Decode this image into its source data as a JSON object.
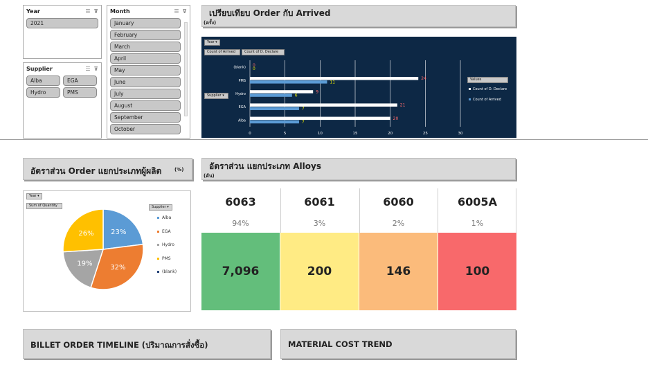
{
  "slicers": {
    "year": {
      "title": "Year",
      "items": [
        "2021"
      ]
    },
    "month": {
      "title": "Month",
      "items": [
        "January",
        "February",
        "March",
        "April",
        "May",
        "June",
        "July",
        "August",
        "September",
        "October"
      ]
    },
    "supplier": {
      "title": "Supplier",
      "items": [
        "Alba",
        "EGA",
        "Hydro",
        "PMS"
      ]
    },
    "icons": [
      "multi-select-icon",
      "clear-filter-icon"
    ]
  },
  "order_vs_arrived": {
    "title": "เปรียบเทียบ Order กับ Arrived",
    "unit": "(ครั้ง)",
    "buttons": {
      "year": "Year",
      "count_arrived": "Count of Arrived",
      "count_declare": "Count of D. Declare",
      "supplier": "Supplier"
    },
    "legend_title": "Values"
  },
  "order_share": {
    "title": "อัตราส่วน Order แยกประเภทผู้ผลิต",
    "unit": "(%)",
    "buttons": {
      "year": "Year",
      "sum_quantity": "Sum of Quantity",
      "supplier": "Supplier"
    }
  },
  "alloys": {
    "title": "อัตราส่วน แยกประเภท Alloys",
    "unit": "(ตัน)",
    "items": [
      {
        "name": "6063",
        "pct": "94%",
        "value": "7,096",
        "color": "#63be7b"
      },
      {
        "name": "6061",
        "pct": "3%",
        "value": "200",
        "color": "#ffeb84"
      },
      {
        "name": "6060",
        "pct": "2%",
        "value": "146",
        "color": "#fbbb7b"
      },
      {
        "name": "6005A",
        "pct": "1%",
        "value": "100",
        "color": "#f8696b"
      }
    ]
  },
  "timeline": {
    "title": "BILLET ORDER TIMELINE (ปริมาณการสั่งซื้อ)"
  },
  "cost_trend": {
    "title": "MATERIAL COST TREND"
  },
  "chart_data": [
    {
      "type": "bar",
      "orientation": "horizontal",
      "categories": [
        "(blank)",
        "PMS",
        "Hydro",
        "EGA",
        "Alba"
      ],
      "series": [
        {
          "name": "Count of D. Declare",
          "color": "#ffffff",
          "label_color": "#ff6b6b",
          "values": [
            0,
            24,
            9,
            21,
            20
          ]
        },
        {
          "name": "Count of Arrived",
          "color": "#5b9bd5",
          "label_color": "#e6e600",
          "values": [
            0,
            11,
            6,
            7,
            7
          ]
        }
      ],
      "xlim": [
        0,
        30
      ],
      "xticks": [
        "0",
        "5",
        "10",
        "15",
        "20",
        "25",
        "30"
      ],
      "grid": true,
      "legend": "right"
    },
    {
      "type": "pie",
      "slices": [
        {
          "name": "Alba",
          "value": 23,
          "label": "23%",
          "color": "#5b9bd5"
        },
        {
          "name": "EGA",
          "value": 32,
          "label": "32%",
          "color": "#ed7d31"
        },
        {
          "name": "Hydro",
          "value": 19,
          "label": "19%",
          "color": "#a5a5a5"
        },
        {
          "name": "PMS",
          "value": 26,
          "label": "26%",
          "color": "#ffc000"
        },
        {
          "name": "(blank)",
          "value": 0,
          "label": "",
          "color": "#264478"
        }
      ],
      "legend": "right"
    }
  ]
}
